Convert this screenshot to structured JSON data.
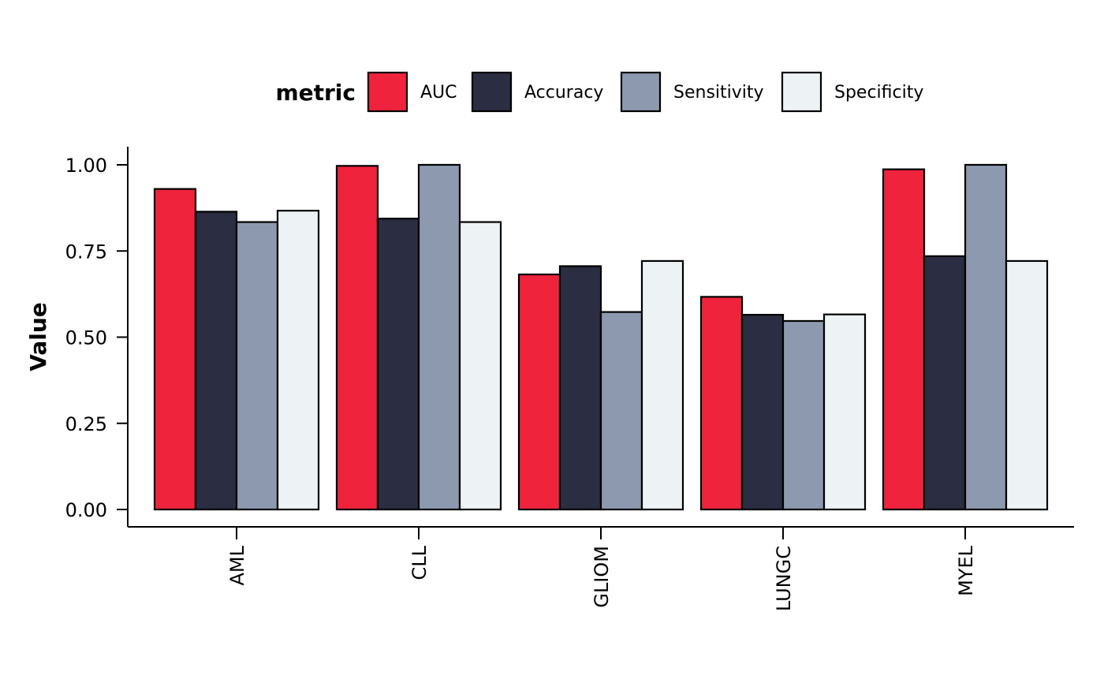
{
  "chart_data": {
    "type": "bar",
    "categories": [
      "AML",
      "CLL",
      "GLIOM",
      "LUNGC",
      "MYEL"
    ],
    "series": [
      {
        "name": "AUC",
        "color": "#ef233c",
        "values": [
          0.93,
          0.997,
          0.682,
          0.617,
          0.987
        ]
      },
      {
        "name": "Accuracy",
        "color": "#2b2d42",
        "values": [
          0.864,
          0.844,
          0.706,
          0.565,
          0.735
        ]
      },
      {
        "name": "Sensitivity",
        "color": "#8d99ae",
        "values": [
          0.834,
          1.0,
          0.573,
          0.547,
          1.0
        ]
      },
      {
        "name": "Specificity",
        "color": "#edf2f4",
        "values": [
          0.867,
          0.834,
          0.721,
          0.566,
          0.721
        ]
      }
    ],
    "legend_title": "metric",
    "legend_position": "top",
    "xlabel": "",
    "ylabel": "Value",
    "ylim": [
      0,
      1.0
    ],
    "yticks": [
      "0.00",
      "0.25",
      "0.50",
      "0.75",
      "1.00"
    ],
    "ytick_values": [
      0,
      0.25,
      0.5,
      0.75,
      1.0
    ],
    "grid": false
  }
}
